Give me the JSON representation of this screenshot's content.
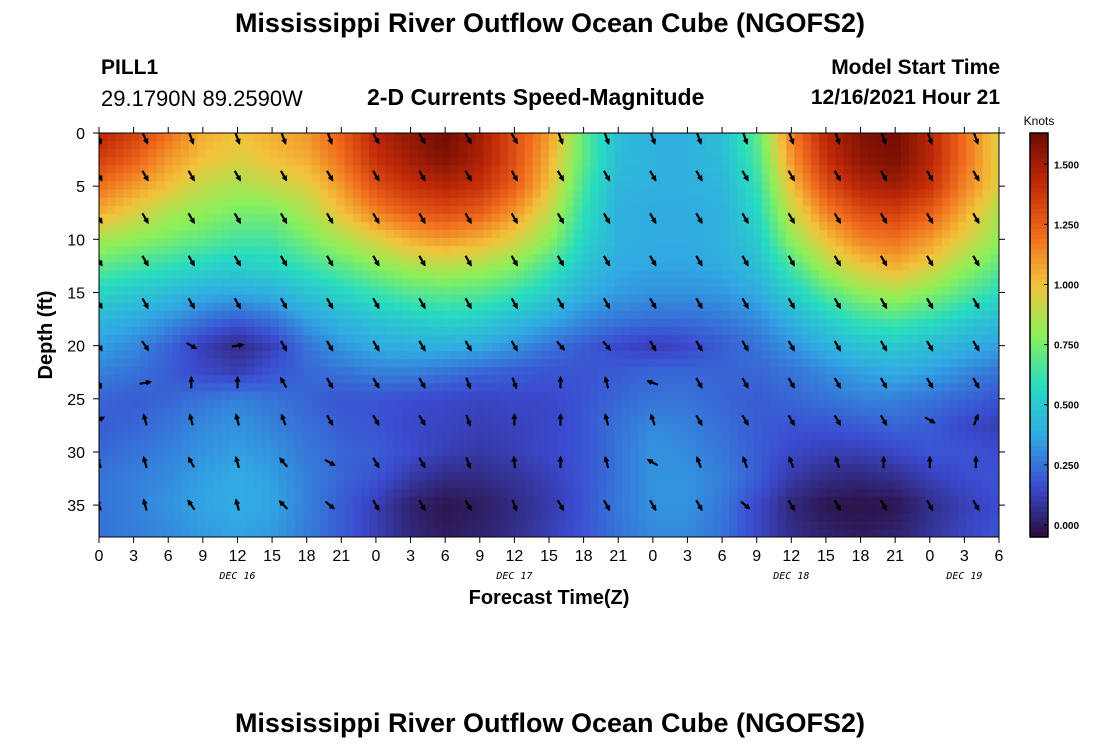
{
  "header": {
    "title": "Mississippi River Outflow Ocean Cube (NGOFS2)",
    "station": "PILL1",
    "coordinates": "29.1790N  89.2590W",
    "subtitle": "2-D Currents Speed-Magnitude",
    "model_start_label": "Model Start Time",
    "model_start_value": "12/16/2021 Hour 21"
  },
  "footer": {
    "title": "Mississippi River Outflow Ocean Cube (NGOFS2)"
  },
  "chart_data": {
    "type": "heatmap",
    "title": "2-D Currents Speed-Magnitude",
    "xlabel": "Forecast Time(Z)",
    "ylabel": "Depth (ft)",
    "x_hours": [
      0,
      3,
      6,
      9,
      12,
      15,
      18,
      21,
      24,
      27,
      30,
      33,
      36,
      39,
      42,
      45,
      48,
      51,
      54,
      57,
      60,
      63,
      66,
      69,
      72,
      75,
      78
    ],
    "x_tick_labels": [
      "0",
      "3",
      "6",
      "9",
      "12",
      "15",
      "18",
      "21",
      "0",
      "3",
      "6",
      "9",
      "12",
      "15",
      "18",
      "21",
      "0",
      "3",
      "6",
      "9",
      "12",
      "15",
      "18",
      "21",
      "0",
      "3",
      "6"
    ],
    "date_labels": [
      {
        "hour": 12,
        "label": "DEC 16"
      },
      {
        "hour": 36,
        "label": "DEC 17"
      },
      {
        "hour": 60,
        "label": "DEC 18"
      },
      {
        "hour": 75,
        "label": "DEC 19"
      }
    ],
    "y_ticks": [
      0,
      5,
      10,
      15,
      20,
      25,
      30,
      35
    ],
    "y_range": [
      0,
      38
    ],
    "x_range": [
      0,
      78
    ],
    "colorbar": {
      "label": "Knots",
      "ticks": [
        "0.000",
        "0.250",
        "0.500",
        "0.750",
        "1.000",
        "1.250",
        "1.500"
      ],
      "range": [
        -0.05,
        1.63
      ],
      "colors": [
        "#2a0d3b",
        "#3b4bd0",
        "#31a9e3",
        "#28dcc0",
        "#8bf05a",
        "#f3c23a",
        "#f06a1c",
        "#c12a08",
        "#6e0b03"
      ]
    },
    "cols": [
      "0",
      "3",
      "6",
      "9",
      "12",
      "15",
      "18",
      "21",
      "24",
      "27",
      "30",
      "33",
      "36",
      "39",
      "42",
      "45",
      "48",
      "51",
      "54",
      "57",
      "60",
      "63",
      "66",
      "69",
      "72",
      "75",
      "78"
    ],
    "rows_depth_ft": [
      0,
      2.5,
      5,
      7.5,
      10,
      12.5,
      15,
      17.5,
      20,
      22.5,
      25,
      27.5,
      30,
      32.5,
      35,
      37.5
    ],
    "speed_knots": [
      [
        1.45,
        1.35,
        1.2,
        1.05,
        1.0,
        1.05,
        1.1,
        1.25,
        1.45,
        1.55,
        1.62,
        1.5,
        1.3,
        1.1,
        0.7,
        0.45,
        0.4,
        0.4,
        0.45,
        0.7,
        1.15,
        1.45,
        1.58,
        1.62,
        1.45,
        1.2,
        0.95
      ],
      [
        1.35,
        1.25,
        1.1,
        1.0,
        0.95,
        1.0,
        1.05,
        1.2,
        1.4,
        1.5,
        1.58,
        1.48,
        1.3,
        1.05,
        0.7,
        0.45,
        0.4,
        0.4,
        0.45,
        0.65,
        1.1,
        1.4,
        1.55,
        1.6,
        1.45,
        1.2,
        0.95
      ],
      [
        1.2,
        1.1,
        1.0,
        0.9,
        0.85,
        0.9,
        0.95,
        1.1,
        1.3,
        1.4,
        1.45,
        1.4,
        1.25,
        1.0,
        0.65,
        0.42,
        0.4,
        0.4,
        0.42,
        0.6,
        1.0,
        1.3,
        1.45,
        1.5,
        1.4,
        1.15,
        0.95
      ],
      [
        1.05,
        0.95,
        0.85,
        0.8,
        0.75,
        0.75,
        0.85,
        1.0,
        1.15,
        1.25,
        1.3,
        1.25,
        1.1,
        0.9,
        0.6,
        0.4,
        0.38,
        0.38,
        0.4,
        0.55,
        0.9,
        1.15,
        1.3,
        1.35,
        1.25,
        1.05,
        0.85
      ],
      [
        0.85,
        0.8,
        0.75,
        0.7,
        0.65,
        0.65,
        0.75,
        0.85,
        0.95,
        1.05,
        1.1,
        1.05,
        0.95,
        0.8,
        0.55,
        0.4,
        0.38,
        0.38,
        0.4,
        0.5,
        0.8,
        1.0,
        1.15,
        1.2,
        1.1,
        0.95,
        0.8
      ],
      [
        0.7,
        0.65,
        0.6,
        0.55,
        0.52,
        0.55,
        0.62,
        0.7,
        0.78,
        0.85,
        0.88,
        0.85,
        0.78,
        0.65,
        0.48,
        0.38,
        0.36,
        0.36,
        0.38,
        0.45,
        0.65,
        0.85,
        0.98,
        1.05,
        0.95,
        0.82,
        0.7
      ],
      [
        0.55,
        0.5,
        0.45,
        0.4,
        0.38,
        0.4,
        0.48,
        0.55,
        0.62,
        0.68,
        0.7,
        0.68,
        0.62,
        0.52,
        0.4,
        0.34,
        0.32,
        0.32,
        0.33,
        0.38,
        0.52,
        0.68,
        0.8,
        0.85,
        0.78,
        0.68,
        0.58
      ],
      [
        0.42,
        0.38,
        0.32,
        0.25,
        0.2,
        0.25,
        0.35,
        0.42,
        0.48,
        0.52,
        0.55,
        0.52,
        0.45,
        0.38,
        0.3,
        0.26,
        0.24,
        0.24,
        0.26,
        0.3,
        0.4,
        0.52,
        0.62,
        0.66,
        0.6,
        0.52,
        0.45
      ],
      [
        0.35,
        0.3,
        0.22,
        0.12,
        0.05,
        0.12,
        0.25,
        0.33,
        0.38,
        0.4,
        0.4,
        0.38,
        0.32,
        0.25,
        0.2,
        0.15,
        0.12,
        0.15,
        0.2,
        0.25,
        0.32,
        0.4,
        0.48,
        0.5,
        0.45,
        0.4,
        0.35
      ],
      [
        0.28,
        0.25,
        0.2,
        0.15,
        0.12,
        0.18,
        0.22,
        0.25,
        0.28,
        0.28,
        0.25,
        0.22,
        0.2,
        0.18,
        0.18,
        0.2,
        0.22,
        0.22,
        0.22,
        0.22,
        0.25,
        0.3,
        0.35,
        0.38,
        0.35,
        0.3,
        0.25
      ],
      [
        0.22,
        0.2,
        0.22,
        0.25,
        0.28,
        0.25,
        0.22,
        0.18,
        0.18,
        0.16,
        0.15,
        0.14,
        0.15,
        0.15,
        0.18,
        0.22,
        0.25,
        0.25,
        0.22,
        0.2,
        0.22,
        0.25,
        0.28,
        0.28,
        0.25,
        0.22,
        0.18
      ],
      [
        0.2,
        0.22,
        0.25,
        0.3,
        0.32,
        0.28,
        0.24,
        0.2,
        0.18,
        0.15,
        0.14,
        0.12,
        0.13,
        0.15,
        0.18,
        0.25,
        0.3,
        0.28,
        0.24,
        0.2,
        0.18,
        0.18,
        0.2,
        0.22,
        0.2,
        0.15,
        0.12
      ],
      [
        0.22,
        0.25,
        0.28,
        0.32,
        0.35,
        0.32,
        0.26,
        0.22,
        0.2,
        0.16,
        0.12,
        0.1,
        0.12,
        0.15,
        0.18,
        0.25,
        0.32,
        0.3,
        0.26,
        0.2,
        0.15,
        0.12,
        0.12,
        0.15,
        0.18,
        0.18,
        0.16
      ],
      [
        0.25,
        0.28,
        0.3,
        0.35,
        0.38,
        0.35,
        0.28,
        0.22,
        0.18,
        0.1,
        0.05,
        0.05,
        0.08,
        0.12,
        0.18,
        0.25,
        0.32,
        0.32,
        0.28,
        0.2,
        0.1,
        0.05,
        0.04,
        0.06,
        0.12,
        0.16,
        0.18
      ],
      [
        0.25,
        0.28,
        0.32,
        0.36,
        0.38,
        0.36,
        0.28,
        0.2,
        0.12,
        0.02,
        -0.02,
        0.0,
        0.05,
        0.1,
        0.18,
        0.26,
        0.32,
        0.32,
        0.26,
        0.15,
        0.04,
        -0.02,
        -0.03,
        -0.02,
        0.06,
        0.12,
        0.16
      ],
      [
        0.25,
        0.27,
        0.3,
        0.34,
        0.36,
        0.34,
        0.27,
        0.2,
        0.12,
        0.04,
        0.0,
        0.02,
        0.06,
        0.12,
        0.18,
        0.25,
        0.3,
        0.3,
        0.25,
        0.15,
        0.06,
        0.02,
        0.0,
        0.02,
        0.08,
        0.14,
        0.18
      ]
    ],
    "vector_depths_ft": [
      0.5,
      4.0,
      8.0,
      12.0,
      16.0,
      20.0,
      23.5,
      27.0,
      31.0,
      35.0
    ],
    "vector_hours": [
      0,
      4,
      8,
      12,
      16,
      20,
      24,
      28,
      32,
      36,
      40,
      44,
      48,
      52,
      56,
      60,
      64,
      68,
      72,
      76
    ],
    "vector_direction_deg": [
      [
        160,
        155,
        160,
        160,
        160,
        160,
        150,
        150,
        150,
        150,
        160,
        160,
        160,
        160,
        160,
        160,
        160,
        160,
        160,
        160
      ],
      [
        150,
        150,
        150,
        150,
        150,
        150,
        150,
        150,
        150,
        150,
        150,
        150,
        150,
        150,
        150,
        150,
        150,
        150,
        150,
        150
      ],
      [
        150,
        150,
        150,
        150,
        150,
        150,
        150,
        150,
        150,
        150,
        150,
        150,
        150,
        150,
        150,
        150,
        150,
        150,
        150,
        150
      ],
      [
        150,
        150,
        150,
        150,
        150,
        150,
        150,
        150,
        150,
        150,
        150,
        150,
        150,
        150,
        150,
        150,
        150,
        150,
        150,
        150
      ],
      [
        150,
        150,
        150,
        150,
        150,
        150,
        150,
        150,
        150,
        150,
        150,
        150,
        150,
        150,
        150,
        150,
        150,
        150,
        150,
        150
      ],
      [
        150,
        145,
        120,
        80,
        150,
        150,
        150,
        150,
        150,
        150,
        140,
        140,
        150,
        150,
        150,
        150,
        150,
        150,
        150,
        150
      ],
      [
        160,
        80,
        0,
        0,
        330,
        150,
        150,
        150,
        160,
        160,
        0,
        345,
        290,
        150,
        150,
        150,
        150,
        150,
        150,
        150
      ],
      [
        60,
        345,
        345,
        345,
        340,
        150,
        150,
        150,
        160,
        0,
        0,
        345,
        340,
        150,
        150,
        150,
        150,
        150,
        120,
        20
      ],
      [
        340,
        345,
        330,
        345,
        320,
        120,
        150,
        150,
        160,
        355,
        0,
        345,
        300,
        340,
        340,
        340,
        340,
        0,
        0,
        0
      ],
      [
        340,
        345,
        325,
        345,
        315,
        130,
        150,
        150,
        150,
        160,
        150,
        150,
        150,
        150,
        130,
        150,
        150,
        150,
        150,
        150
      ]
    ]
  }
}
